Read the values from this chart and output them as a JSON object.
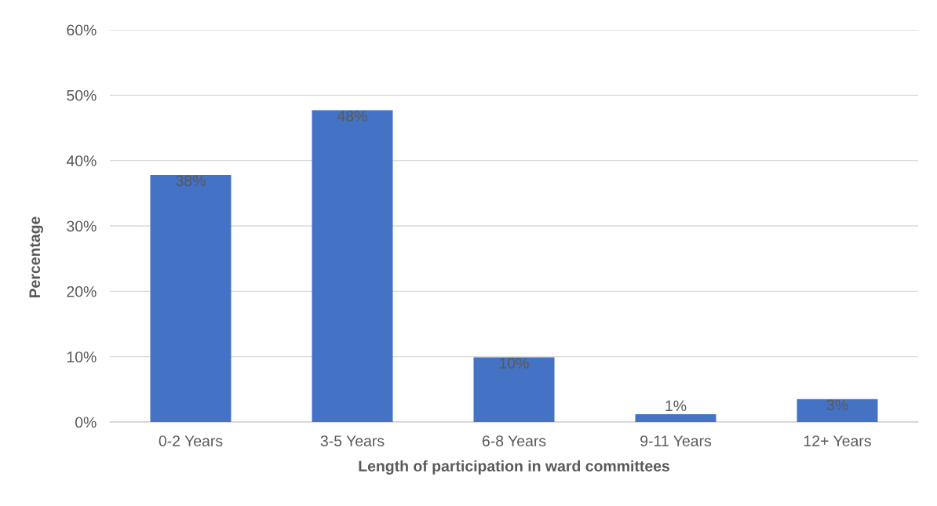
{
  "chart_data": {
    "type": "bar",
    "xlabel": "Length of participation in ward committees",
    "ylabel": "Percentage",
    "categories": [
      "0-2 Years",
      "3-5 Years",
      "6-8 Years",
      "9-11 Years",
      "12+ Years"
    ],
    "values": [
      37.8,
      47.7,
      9.9,
      1.2,
      3.5
    ],
    "value_labels": [
      "38%",
      "48%",
      "10%",
      "1%",
      "3%"
    ],
    "color": "#4472c4",
    "ylim": [
      0,
      60
    ],
    "yticks": [
      {
        "value": 0,
        "label": "0%"
      },
      {
        "value": 10,
        "label": "10%"
      },
      {
        "value": 20,
        "label": "20%"
      },
      {
        "value": 30,
        "label": "30%"
      },
      {
        "value": 40,
        "label": "40%"
      },
      {
        "value": 50,
        "label": "50%"
      },
      {
        "value": 60,
        "label": "60%"
      }
    ],
    "grid": "y"
  }
}
